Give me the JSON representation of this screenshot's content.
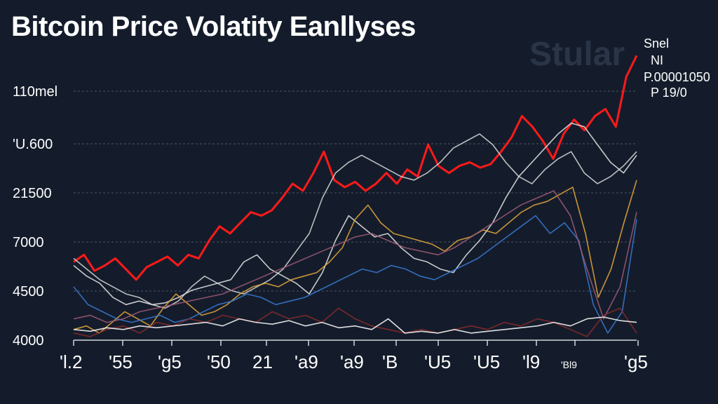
{
  "title": "Bitcoin Price Volatity Eanllyses",
  "watermark": "Stular",
  "legend": [
    "Snel",
    "NI",
    "P.00001050",
    "P 19/0"
  ],
  "chart_data": {
    "type": "line",
    "title": "Bitcoin Price Volatity Eanllyses",
    "y_ticks": [
      "110mel",
      "'U.600",
      "21500",
      "7000",
      "4500",
      "4000"
    ],
    "x_ticks": [
      "'l.2",
      "'55",
      "'g5",
      "'50",
      "21",
      "'a9",
      "'a9",
      "'B",
      "'U5",
      "'U5",
      "'l9",
      "'Bl9",
      "'g5"
    ],
    "grid": true,
    "series": [
      {
        "color": "#ff1a1a",
        "values": [
          6.2,
          6.4,
          5.95,
          6.1,
          6.3,
          6.0,
          5.7,
          6.05,
          6.2,
          6.35,
          6.1,
          6.4,
          6.3,
          6.8,
          7.2,
          7.0,
          7.3,
          7.6,
          7.5,
          7.65,
          8.0,
          8.4,
          8.2,
          8.7,
          9.3,
          8.5,
          8.3,
          8.45,
          8.2,
          8.4,
          8.7,
          8.4,
          8.8,
          8.6,
          9.5,
          8.9,
          8.7,
          8.9,
          9.0,
          8.85,
          8.95,
          9.3,
          9.7,
          10.3,
          10.0,
          9.6,
          9.1,
          9.8,
          10.2,
          9.9,
          10.3,
          10.5,
          10.0,
          11.4,
          12.0
        ]
      },
      {
        "color": "#e6e6e6",
        "values": [
          6.1,
          5.8,
          5.6,
          5.2,
          5.0,
          5.1,
          5.0,
          5.05,
          5.2,
          5.4,
          5.5,
          5.6,
          5.7,
          6.2,
          6.4,
          6.0,
          5.8,
          5.6,
          5.3,
          5.9,
          6.8,
          7.5,
          7.2,
          6.9,
          7.0,
          6.6,
          6.3,
          6.2,
          6.0,
          5.9,
          6.4,
          6.8,
          7.3,
          8.0,
          8.6,
          9.0,
          9.4,
          9.8,
          10.1,
          10.0,
          9.5,
          9.0,
          8.7,
          9.2
        ]
      },
      {
        "color": "#d9d9d9",
        "values": [
          6.3,
          6.0,
          5.7,
          5.5,
          5.3,
          5.2,
          5.0,
          4.9,
          5.1,
          5.5,
          5.8,
          5.6,
          5.4,
          5.3,
          5.5,
          5.7,
          6.0,
          6.5,
          7.0,
          8.0,
          8.7,
          9.0,
          9.2,
          9.0,
          8.8,
          8.6,
          8.5,
          8.7,
          9.0,
          9.4,
          9.6,
          9.8,
          9.5,
          9.0,
          8.6,
          8.4,
          8.8,
          9.1,
          9.3,
          8.7,
          8.4,
          8.6,
          8.9,
          9.3
        ]
      },
      {
        "color": "#e8a93a",
        "values": [
          4.3,
          4.4,
          4.2,
          4.5,
          4.8,
          4.6,
          4.4,
          4.9,
          5.3,
          5.0,
          4.7,
          4.8,
          5.0,
          5.3,
          5.5,
          5.6,
          5.5,
          5.7,
          5.8,
          5.9,
          6.2,
          6.6,
          7.4,
          7.8,
          7.3,
          7.0,
          6.9,
          6.8,
          6.7,
          6.5,
          6.8,
          6.9,
          7.1,
          7.0,
          7.3,
          7.6,
          7.8,
          7.9,
          8.1,
          8.3,
          7.0,
          5.2,
          6.0,
          7.3,
          8.5
        ]
      },
      {
        "color": "#3a7bd5",
        "values": [
          5.5,
          5.0,
          4.8,
          4.6,
          4.5,
          4.6,
          4.7,
          4.5,
          4.6,
          4.8,
          5.0,
          5.1,
          5.3,
          5.2,
          5.0,
          5.1,
          5.2,
          5.4,
          5.6,
          5.8,
          6.0,
          5.9,
          6.1,
          6.0,
          5.8,
          5.7,
          5.9,
          6.1,
          6.3,
          6.6,
          6.9,
          7.2,
          7.5,
          7.0,
          7.3,
          6.8,
          5.0,
          4.2,
          4.8,
          7.4
        ]
      },
      {
        "color": "#a05a78",
        "values": [
          4.6,
          4.7,
          4.5,
          4.6,
          4.8,
          4.9,
          5.0,
          5.1,
          5.2,
          5.3,
          5.5,
          5.7,
          5.9,
          6.1,
          6.3,
          6.5,
          6.7,
          6.9,
          7.0,
          6.8,
          6.6,
          6.5,
          6.4,
          6.6,
          6.9,
          7.2,
          7.5,
          7.8,
          8.0,
          8.2,
          7.5,
          6.0,
          4.6,
          5.5,
          7.6
        ]
      },
      {
        "color": "#8c2a2a",
        "values": [
          4.2,
          4.1,
          4.3,
          4.4,
          4.2,
          4.5,
          4.4,
          4.6,
          4.5,
          4.7,
          4.6,
          4.5,
          4.8,
          4.6,
          4.7,
          4.5,
          4.9,
          4.6,
          4.4,
          4.3,
          4.2,
          4.3,
          4.2,
          4.3,
          4.4,
          4.3,
          4.5,
          4.4,
          4.6,
          4.5,
          4.3,
          4.1,
          4.7,
          4.9,
          4.2
        ]
      },
      {
        "color": "#ffffff",
        "values": [
          4.3,
          4.25,
          4.35,
          4.3,
          4.4,
          4.35,
          4.4,
          4.45,
          4.5,
          4.4,
          4.6,
          4.5,
          4.45,
          4.55,
          4.4,
          4.5,
          4.35,
          4.4,
          4.3,
          4.6,
          4.2,
          4.25,
          4.2,
          4.3,
          4.2,
          4.25,
          4.3,
          4.35,
          4.4,
          4.5,
          4.4,
          4.6,
          4.65,
          4.55,
          4.5
        ]
      }
    ]
  }
}
